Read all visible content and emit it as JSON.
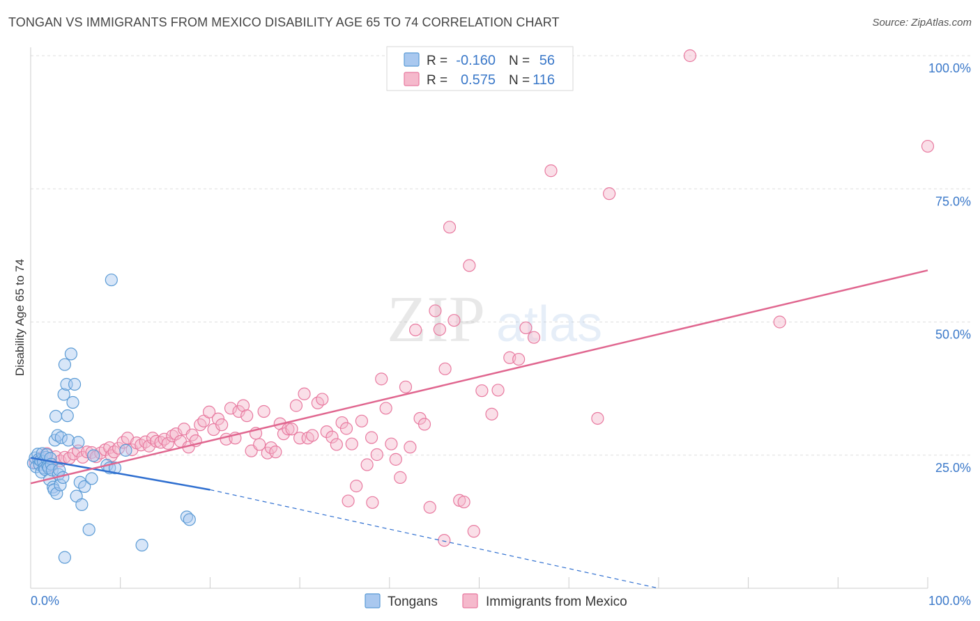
{
  "title": "TONGAN VS IMMIGRANTS FROM MEXICO DISABILITY AGE 65 TO 74 CORRELATION CHART",
  "source": "Source: ZipAtlas.com",
  "watermark": {
    "zip": "ZIP",
    "atlas": "atlas"
  },
  "colors": {
    "blue": "#5b9bd5",
    "blue_fill": "#a9c8ef",
    "blue_line": "#2f6fd0",
    "pink": "#e8799f",
    "pink_fill": "#f5b9cc",
    "pink_line": "#e0668f",
    "tick_text": "#3a78c9",
    "grid": "#dddddd"
  },
  "legend": {
    "r_label": "R =",
    "n_label": "N =",
    "entries": [
      {
        "r": "-0.160",
        "n": "56"
      },
      {
        "r": "0.575",
        "n": "116"
      }
    ]
  },
  "bottom_legend": [
    "Tongans",
    "Immigrants from Mexico"
  ],
  "chart_data": {
    "type": "scatter",
    "xlabel": "",
    "ylabel": "Disability Age 65 to 74",
    "xlim": [
      0,
      100
    ],
    "ylim": [
      0,
      100
    ],
    "x_tick_labels": [
      "0.0%",
      "100.0%"
    ],
    "y_tick_values": [
      25,
      50,
      75,
      100
    ],
    "y_tick_labels": [
      "25.0%",
      "50.0%",
      "75.0%",
      "100.0%"
    ],
    "grid": true,
    "legend_position": "top-center",
    "series": [
      {
        "name": "Tongans",
        "r": -0.16,
        "n": 56,
        "trend": {
          "x0": 0,
          "y0": 24.5,
          "x1": 20,
          "y1": 18.5,
          "dash_to_x": 70,
          "dash_to_y": 0
        },
        "points": [
          [
            0.3,
            23.5
          ],
          [
            0.5,
            24.5
          ],
          [
            0.6,
            22.8
          ],
          [
            0.8,
            25.2
          ],
          [
            0.9,
            24.2
          ],
          [
            1.0,
            23.2
          ],
          [
            1.1,
            24.0
          ],
          [
            1.2,
            21.8
          ],
          [
            1.3,
            25.3
          ],
          [
            1.4,
            23.8
          ],
          [
            1.5,
            22.6
          ],
          [
            1.6,
            22.3
          ],
          [
            1.7,
            24.6
          ],
          [
            1.8,
            25.1
          ],
          [
            1.9,
            23.0
          ],
          [
            2.0,
            22.6
          ],
          [
            2.1,
            20.4
          ],
          [
            2.2,
            24.4
          ],
          [
            2.3,
            23.3
          ],
          [
            2.4,
            22.2
          ],
          [
            2.5,
            19.0
          ],
          [
            2.6,
            18.5
          ],
          [
            2.7,
            27.8
          ],
          [
            2.8,
            32.3
          ],
          [
            2.9,
            17.8
          ],
          [
            3.0,
            28.7
          ],
          [
            3.1,
            21.4
          ],
          [
            3.2,
            22.2
          ],
          [
            3.3,
            19.4
          ],
          [
            3.4,
            28.3
          ],
          [
            3.6,
            20.8
          ],
          [
            3.7,
            36.4
          ],
          [
            3.8,
            42.0
          ],
          [
            4.0,
            38.3
          ],
          [
            4.1,
            32.4
          ],
          [
            4.2,
            27.8
          ],
          [
            4.5,
            44.0
          ],
          [
            4.7,
            34.9
          ],
          [
            4.9,
            38.3
          ],
          [
            5.1,
            17.3
          ],
          [
            5.3,
            27.4
          ],
          [
            5.5,
            19.9
          ],
          [
            5.7,
            15.7
          ],
          [
            6.0,
            19.1
          ],
          [
            6.5,
            11.0
          ],
          [
            6.8,
            20.6
          ],
          [
            7.0,
            24.9
          ],
          [
            8.5,
            23.1
          ],
          [
            8.8,
            22.6
          ],
          [
            9.0,
            57.9
          ],
          [
            9.4,
            22.6
          ],
          [
            10.6,
            25.9
          ],
          [
            12.4,
            8.1
          ],
          [
            17.4,
            13.4
          ],
          [
            17.7,
            12.9
          ],
          [
            3.8,
            5.8
          ]
        ]
      },
      {
        "name": "Immigrants from Mexico",
        "r": 0.575,
        "n": 116,
        "trend": {
          "x0": 0,
          "y0": 19.7,
          "x1": 100,
          "y1": 59.7
        },
        "points": [
          [
            0.5,
            23.6
          ],
          [
            1.2,
            24.5
          ],
          [
            1.8,
            25.3
          ],
          [
            2.3,
            23.0
          ],
          [
            2.8,
            24.7
          ],
          [
            3.3,
            23.9
          ],
          [
            3.8,
            24.6
          ],
          [
            4.3,
            24.4
          ],
          [
            4.8,
            25.2
          ],
          [
            5.3,
            25.8
          ],
          [
            5.8,
            24.6
          ],
          [
            6.3,
            25.6
          ],
          [
            6.8,
            25.5
          ],
          [
            7.3,
            24.7
          ],
          [
            7.8,
            25.4
          ],
          [
            8.3,
            26.0
          ],
          [
            8.8,
            26.4
          ],
          [
            9.0,
            24.9
          ],
          [
            9.3,
            25.6
          ],
          [
            9.8,
            26.3
          ],
          [
            10.3,
            27.4
          ],
          [
            10.8,
            28.2
          ],
          [
            11.3,
            26.0
          ],
          [
            11.8,
            27.3
          ],
          [
            12.3,
            26.9
          ],
          [
            12.8,
            27.5
          ],
          [
            13.2,
            26.7
          ],
          [
            13.6,
            28.2
          ],
          [
            14.0,
            27.6
          ],
          [
            14.5,
            27.4
          ],
          [
            14.9,
            28.0
          ],
          [
            15.3,
            27.2
          ],
          [
            15.8,
            28.6
          ],
          [
            16.2,
            29.0
          ],
          [
            16.7,
            27.6
          ],
          [
            17.1,
            29.9
          ],
          [
            17.6,
            26.5
          ],
          [
            18.0,
            28.8
          ],
          [
            18.4,
            27.7
          ],
          [
            18.9,
            30.7
          ],
          [
            19.3,
            31.4
          ],
          [
            19.9,
            33.1
          ],
          [
            20.4,
            29.8
          ],
          [
            20.9,
            31.8
          ],
          [
            21.3,
            30.7
          ],
          [
            21.8,
            28.0
          ],
          [
            22.3,
            33.8
          ],
          [
            22.8,
            28.2
          ],
          [
            23.2,
            33.2
          ],
          [
            23.7,
            34.3
          ],
          [
            24.1,
            32.4
          ],
          [
            24.6,
            25.8
          ],
          [
            25.1,
            29.1
          ],
          [
            25.5,
            27.0
          ],
          [
            26.0,
            33.2
          ],
          [
            26.4,
            25.4
          ],
          [
            26.8,
            26.4
          ],
          [
            27.3,
            25.6
          ],
          [
            27.8,
            30.9
          ],
          [
            28.2,
            29.0
          ],
          [
            28.7,
            29.9
          ],
          [
            29.1,
            29.9
          ],
          [
            29.6,
            34.3
          ],
          [
            30.0,
            28.2
          ],
          [
            30.5,
            36.5
          ],
          [
            30.9,
            28.2
          ],
          [
            31.4,
            28.7
          ],
          [
            32.0,
            34.8
          ],
          [
            32.5,
            35.5
          ],
          [
            33.0,
            29.4
          ],
          [
            33.6,
            28.4
          ],
          [
            34.1,
            27.0
          ],
          [
            34.7,
            31.1
          ],
          [
            35.2,
            30.0
          ],
          [
            35.8,
            27.1
          ],
          [
            36.3,
            19.2
          ],
          [
            36.9,
            31.4
          ],
          [
            37.5,
            23.2
          ],
          [
            38.0,
            28.3
          ],
          [
            38.6,
            25.1
          ],
          [
            39.1,
            39.3
          ],
          [
            39.6,
            33.8
          ],
          [
            40.2,
            27.1
          ],
          [
            40.7,
            24.2
          ],
          [
            41.2,
            20.8
          ],
          [
            41.8,
            37.8
          ],
          [
            42.3,
            26.5
          ],
          [
            42.9,
            48.5
          ],
          [
            43.4,
            31.9
          ],
          [
            43.9,
            30.8
          ],
          [
            44.5,
            15.2
          ],
          [
            45.1,
            52.1
          ],
          [
            45.6,
            48.6
          ],
          [
            46.2,
            41.2
          ],
          [
            46.7,
            67.8
          ],
          [
            47.2,
            50.3
          ],
          [
            47.8,
            16.5
          ],
          [
            48.3,
            16.2
          ],
          [
            48.9,
            60.6
          ],
          [
            49.4,
            10.7
          ],
          [
            50.3,
            37.1
          ],
          [
            51.4,
            32.7
          ],
          [
            52.1,
            37.2
          ],
          [
            53.4,
            43.3
          ],
          [
            54.4,
            43.0
          ],
          [
            55.2,
            48.9
          ],
          [
            56.1,
            47.1
          ],
          [
            58.0,
            78.4
          ],
          [
            63.2,
            31.9
          ],
          [
            64.5,
            74.1
          ],
          [
            73.5,
            100.0
          ],
          [
            83.5,
            50.0
          ],
          [
            100.0,
            83.0
          ],
          [
            35.4,
            16.4
          ],
          [
            38.1,
            16.1
          ],
          [
            46.1,
            9.0
          ]
        ]
      }
    ]
  }
}
